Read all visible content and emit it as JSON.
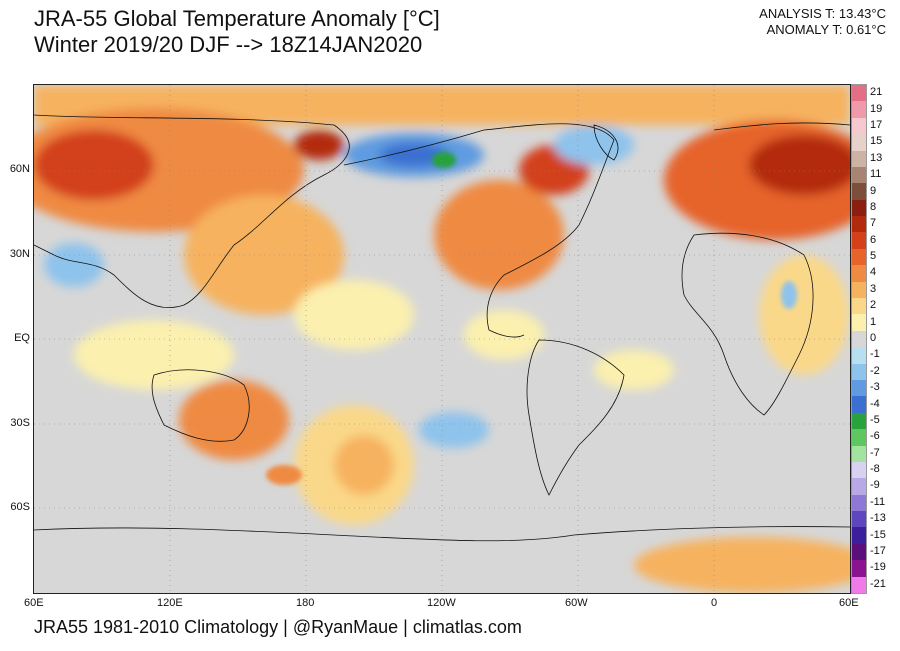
{
  "title": {
    "line1": "JRA-55 Global Temperature Anomaly [°C]",
    "line2": "Winter 2019/20 DJF --> 18Z14JAN2020"
  },
  "readout": {
    "analysis": "ANALYSIS T: 13.43°C",
    "anomaly": "ANOMALY T: 0.61°C"
  },
  "axes": {
    "lat_labels": [
      "60N",
      "30N",
      "EQ",
      "30S",
      "60S"
    ],
    "lon_labels": [
      "60E",
      "120E",
      "180",
      "120W",
      "60W",
      "0",
      "60E"
    ]
  },
  "colorbar": {
    "labels": [
      "21",
      "19",
      "17",
      "15",
      "13",
      "11",
      "9",
      "8",
      "7",
      "6",
      "5",
      "4",
      "3",
      "2",
      "1",
      "0",
      "-1",
      "-2",
      "-3",
      "-4",
      "-5",
      "-6",
      "-7",
      "-8",
      "-9",
      "-11",
      "-13",
      "-15",
      "-17",
      "-19",
      "-21"
    ],
    "colors": [
      "#e36f86",
      "#ef9aaa",
      "#f6c8cf",
      "#e8d1cb",
      "#cdb2a6",
      "#a88573",
      "#7d4f3a",
      "#8a1f0f",
      "#b3290e",
      "#d3401a",
      "#e6632c",
      "#ef8a42",
      "#f6b25e",
      "#fad889",
      "#fbf0ae",
      "#d7d7d7",
      "#b8def2",
      "#8ec3ec",
      "#5f9be0",
      "#3b6fd0",
      "#27a23d",
      "#5fc760",
      "#a3e3a0",
      "#d8d2f0",
      "#b8a8e6",
      "#8d78d6",
      "#5e46be",
      "#3b1f9c",
      "#5a0f7a",
      "#8a138f",
      "#f07be8"
    ]
  },
  "footer": "JRA55 1981-2010 Climatology | @RyanMaue | climatlas.com"
}
